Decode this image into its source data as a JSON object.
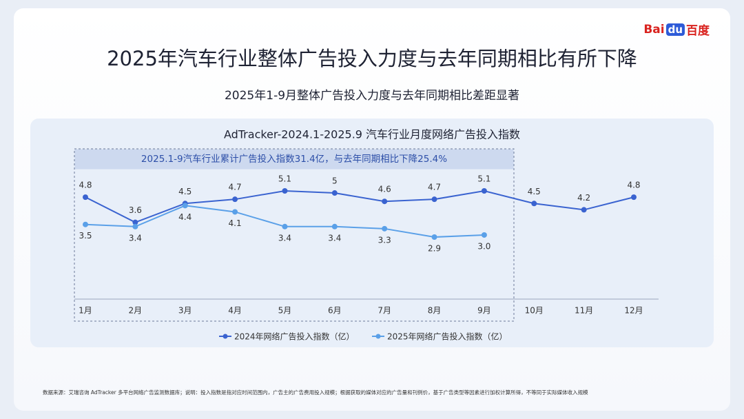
{
  "logo": {
    "left": "Bai",
    "mid": "du",
    "right": "百度"
  },
  "header": {
    "title": "2025年汽车行业整体广告投入力度与去年同期相比有所下降",
    "subtitle": "2025年1-9月整体广告投入力度与去年同期相比差距显著"
  },
  "chart_data": {
    "type": "line",
    "title": "AdTracker-2024.1-2025.9 汽车行业月度网络广告投入指数",
    "annotation": "2025.1-9汽车行业累计广告投入指数31.4亿，与去年同期相比下降25.4%",
    "categories": [
      "1月",
      "2月",
      "3月",
      "4月",
      "5月",
      "6月",
      "7月",
      "8月",
      "9月",
      "10月",
      "11月",
      "12月"
    ],
    "series": [
      {
        "name": "2024年网络广告投入指数（亿）",
        "color": "#3a63d0",
        "values": [
          4.8,
          3.6,
          4.5,
          4.7,
          5.1,
          5,
          4.6,
          4.7,
          5.1,
          4.5,
          4.2,
          4.8
        ]
      },
      {
        "name": "2025年网络广告投入指数（亿）",
        "color": "#5aa0e8",
        "values": [
          3.5,
          3.4,
          4.4,
          4.1,
          3.4,
          3.4,
          3.3,
          2.9,
          3.0,
          null,
          null,
          null
        ],
        "value_labels": [
          "3.5",
          "3.4",
          "4.4",
          "4.1",
          "3.4",
          "3.4",
          "3.3",
          "2.9",
          "3.0",
          null,
          null,
          null
        ]
      }
    ]
  },
  "footnote": "数据来源：艾瑞咨询 AdTracker 多平台网络广告监测数据库；说明：投入指数是指对应时间范围内，广告主的广告费用投入规模；根据获取的媒体对应的广告量和刊例价，基于广告类型等因素进行加权计算所得，不等同于实际媒体收入规模"
}
